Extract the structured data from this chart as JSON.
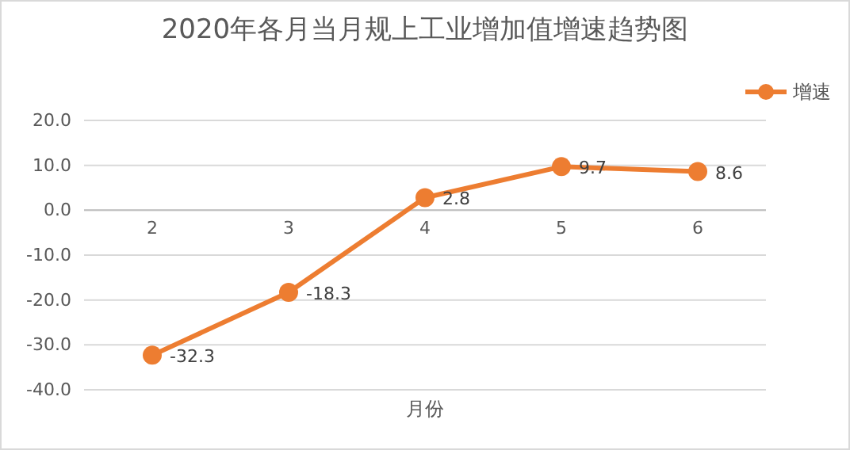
{
  "chart_data": {
    "type": "line",
    "title": "2020年各月当月规上工业增加值增速趋势图",
    "xlabel": "月份",
    "categories": [
      "2",
      "3",
      "4",
      "5",
      "6"
    ],
    "series": [
      {
        "name": "增速",
        "color": "#ed7d31",
        "values": [
          -32.3,
          -18.3,
          2.8,
          9.7,
          8.6
        ]
      }
    ],
    "ylim": [
      -40,
      20
    ],
    "yticks": [
      {
        "value": -40,
        "label": "-40.0"
      },
      {
        "value": -30,
        "label": "-30.0"
      },
      {
        "value": -20,
        "label": "-20.0"
      },
      {
        "value": -10,
        "label": "-10.0"
      },
      {
        "value": 0,
        "label": "0.0"
      },
      {
        "value": 10,
        "label": "10.0"
      },
      {
        "value": 20,
        "label": "20.0"
      }
    ],
    "grid": "y",
    "legend": "top right",
    "marker": "circle",
    "line_style": "solid",
    "data_labels": true
  }
}
